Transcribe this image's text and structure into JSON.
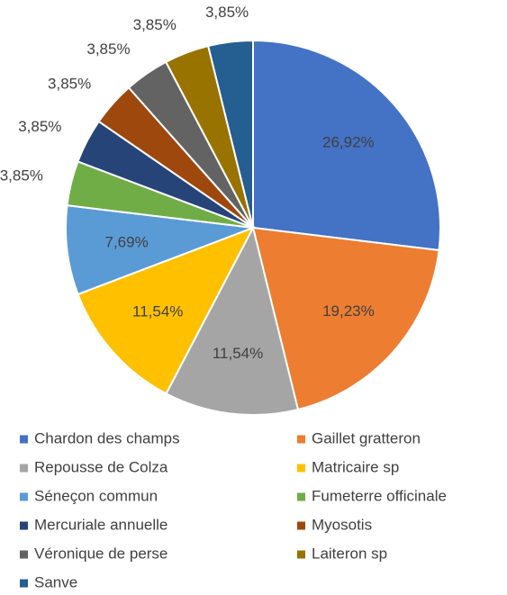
{
  "chart_data": {
    "type": "pie",
    "categories": [
      "Chardon des champs",
      "Gaillet gratteron",
      "Repousse de Colza",
      "Matricaire sp",
      "Séneçon commun",
      "Fumeterre officinale",
      "Mercuriale annuelle",
      "Myosotis",
      "Véronique de perse",
      "Laiteron sp",
      "Sanve"
    ],
    "values": [
      26.92,
      19.23,
      11.54,
      11.54,
      7.69,
      3.85,
      3.85,
      3.85,
      3.85,
      3.85,
      3.85
    ],
    "value_labels": [
      "26,92%",
      "19,23%",
      "11,54%",
      "11,54%",
      "7,69%",
      "3,85%",
      "3,85%",
      "3,85%",
      "3,85%",
      "3,85%",
      "3,85%"
    ],
    "colors": [
      "#4472c4",
      "#ed7d31",
      "#a5a5a5",
      "#ffc000",
      "#5b9bd5",
      "#70ad47",
      "#264478",
      "#9e480e",
      "#636363",
      "#997300",
      "#255e91"
    ],
    "legend": "bottom"
  }
}
